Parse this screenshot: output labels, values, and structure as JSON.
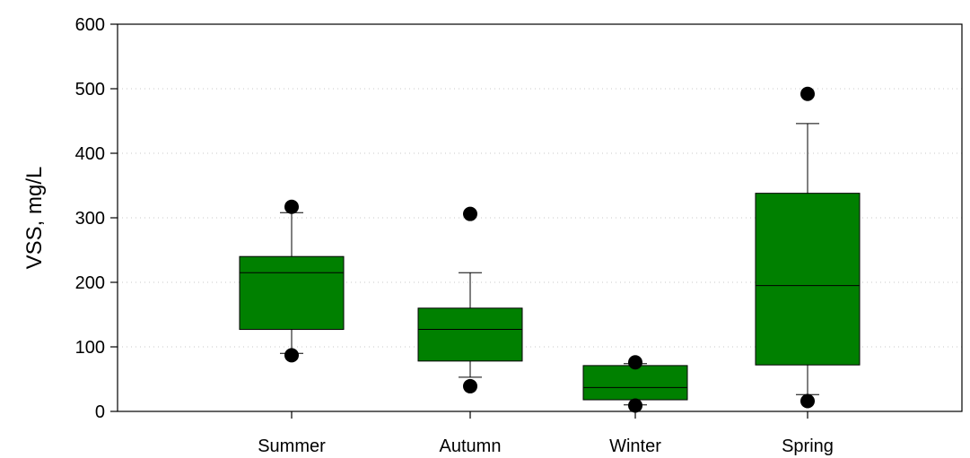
{
  "chart_data": {
    "type": "box",
    "title": "",
    "xlabel": "",
    "ylabel": "VSS, mg/L",
    "ylim": [
      0,
      600
    ],
    "yticks": [
      0,
      100,
      200,
      300,
      400,
      500,
      600
    ],
    "grid": "horizontal-dotted",
    "box_color": "#008000",
    "categories": [
      "Summer",
      "Autumn",
      "Winter",
      "Spring"
    ],
    "boxes": [
      {
        "name": "Summer",
        "whisker_low": 90,
        "q1": 127,
        "median": 215,
        "q3": 240,
        "whisker_high": 308,
        "outliers": [
          317,
          87
        ]
      },
      {
        "name": "Autumn",
        "whisker_low": 53,
        "q1": 78,
        "median": 127,
        "q3": 160,
        "whisker_high": 215,
        "outliers": [
          306,
          39
        ]
      },
      {
        "name": "Winter",
        "whisker_low": 10,
        "q1": 18,
        "median": 37,
        "q3": 71,
        "whisker_high": 74,
        "outliers": [
          76,
          9
        ]
      },
      {
        "name": "Spring",
        "whisker_low": 26,
        "q1": 72,
        "median": 195,
        "q3": 338,
        "whisker_high": 446,
        "outliers": [
          492,
          16
        ]
      }
    ]
  }
}
